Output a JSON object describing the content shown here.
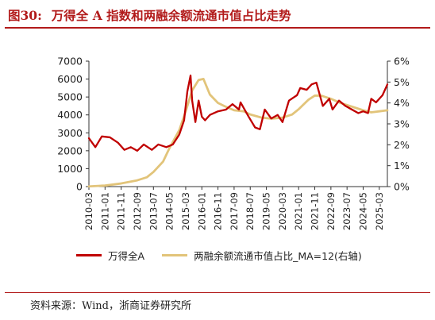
{
  "figure": {
    "number": "图30:",
    "title": "万得全 A 指数和两融余额流通市值占比走势",
    "source": "资料来源：Wind，浙商证券研究所"
  },
  "colors": {
    "index": "#c00000",
    "ratio": "#e2c47a",
    "axis": "#333333"
  },
  "chart_data": {
    "type": "line",
    "title": "",
    "y_left": {
      "min": 0,
      "max": 7000,
      "ticks": [
        0,
        1000,
        2000,
        3000,
        4000,
        5000,
        6000,
        7000
      ]
    },
    "y_right": {
      "min": 0,
      "max": 6,
      "ticks": [
        "0%",
        "1%",
        "2%",
        "3%",
        "4%",
        "5%",
        "6%"
      ]
    },
    "x_ticks": [
      "2010-03",
      "2011-01",
      "2011-11",
      "2012-09",
      "2013-07",
      "2014-05",
      "2015-03",
      "2016-01",
      "2016-11",
      "2017-09",
      "2018-07",
      "2019-05",
      "2020-03",
      "2021-01",
      "2021-11",
      "2022-09",
      "2023-07",
      "2024-05",
      "2025-03"
    ],
    "x_range": [
      "2010-03",
      "2025-08"
    ],
    "legend_position": "bottom",
    "series": [
      {
        "name": "万得全A",
        "axis": "left",
        "color": "#c00000",
        "points": [
          [
            "2010-03",
            2700
          ],
          [
            "2010-07",
            2200
          ],
          [
            "2010-11",
            2800
          ],
          [
            "2011-04",
            2750
          ],
          [
            "2011-09",
            2450
          ],
          [
            "2012-01",
            2050
          ],
          [
            "2012-05",
            2200
          ],
          [
            "2012-09",
            2000
          ],
          [
            "2013-01",
            2350
          ],
          [
            "2013-06",
            2050
          ],
          [
            "2013-10",
            2350
          ],
          [
            "2014-03",
            2200
          ],
          [
            "2014-07",
            2350
          ],
          [
            "2014-11",
            2900
          ],
          [
            "2015-02",
            3700
          ],
          [
            "2015-04",
            5300
          ],
          [
            "2015-06",
            6200
          ],
          [
            "2015-07",
            4800
          ],
          [
            "2015-09",
            3600
          ],
          [
            "2015-11",
            4800
          ],
          [
            "2016-01",
            3900
          ],
          [
            "2016-03",
            3700
          ],
          [
            "2016-06",
            4000
          ],
          [
            "2016-11",
            4200
          ],
          [
            "2017-04",
            4300
          ],
          [
            "2017-08",
            4600
          ],
          [
            "2017-12",
            4300
          ],
          [
            "2018-01",
            4700
          ],
          [
            "2018-06",
            3900
          ],
          [
            "2018-10",
            3300
          ],
          [
            "2019-01",
            3200
          ],
          [
            "2019-04",
            4300
          ],
          [
            "2019-08",
            3800
          ],
          [
            "2019-12",
            4000
          ],
          [
            "2020-03",
            3600
          ],
          [
            "2020-07",
            4800
          ],
          [
            "2020-12",
            5100
          ],
          [
            "2021-02",
            5500
          ],
          [
            "2021-06",
            5400
          ],
          [
            "2021-09",
            5700
          ],
          [
            "2021-12",
            5800
          ],
          [
            "2022-04",
            4500
          ],
          [
            "2022-08",
            4900
          ],
          [
            "2022-10",
            4300
          ],
          [
            "2023-02",
            4800
          ],
          [
            "2023-06",
            4500
          ],
          [
            "2023-10",
            4300
          ],
          [
            "2024-02",
            4100
          ],
          [
            "2024-05",
            4200
          ],
          [
            "2024-08",
            4100
          ],
          [
            "2024-10",
            4900
          ],
          [
            "2025-01",
            4700
          ],
          [
            "2025-05",
            5100
          ],
          [
            "2025-08",
            5700
          ]
        ]
      },
      {
        "name": "两融余额流通市值占比_MA=12(右轴)",
        "axis": "right",
        "color": "#e2c47a",
        "points": [
          [
            "2010-03",
            0.01
          ],
          [
            "2011-01",
            0.05
          ],
          [
            "2011-11",
            0.15
          ],
          [
            "2012-09",
            0.3
          ],
          [
            "2013-03",
            0.45
          ],
          [
            "2013-07",
            0.7
          ],
          [
            "2014-01",
            1.2
          ],
          [
            "2014-05",
            1.85
          ],
          [
            "2014-11",
            2.7
          ],
          [
            "2015-03",
            3.6
          ],
          [
            "2015-07",
            4.6
          ],
          [
            "2015-11",
            5.1
          ],
          [
            "2016-02",
            5.15
          ],
          [
            "2016-06",
            4.4
          ],
          [
            "2016-11",
            4.0
          ],
          [
            "2017-03",
            3.85
          ],
          [
            "2017-09",
            3.65
          ],
          [
            "2018-03",
            3.6
          ],
          [
            "2018-07",
            3.45
          ],
          [
            "2019-02",
            3.3
          ],
          [
            "2019-08",
            3.25
          ],
          [
            "2020-03",
            3.3
          ],
          [
            "2020-09",
            3.45
          ],
          [
            "2021-01",
            3.7
          ],
          [
            "2021-07",
            4.15
          ],
          [
            "2021-11",
            4.35
          ],
          [
            "2022-03",
            4.35
          ],
          [
            "2022-09",
            4.2
          ],
          [
            "2023-03",
            4.0
          ],
          [
            "2023-07",
            3.9
          ],
          [
            "2024-01",
            3.75
          ],
          [
            "2024-05",
            3.65
          ],
          [
            "2024-10",
            3.55
          ],
          [
            "2025-03",
            3.6
          ],
          [
            "2025-08",
            3.65
          ]
        ]
      }
    ]
  }
}
